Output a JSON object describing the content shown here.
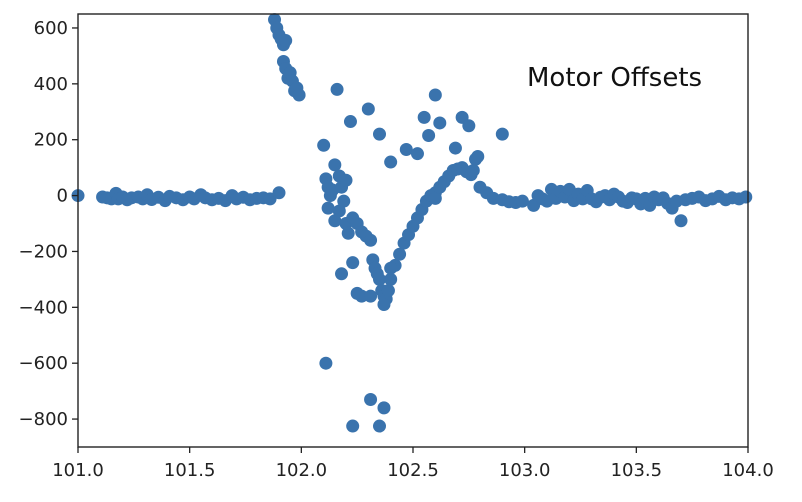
{
  "chart_data": {
    "type": "scatter",
    "title": "",
    "xlabel": "",
    "ylabel": "",
    "xlim": [
      101.0,
      104.0
    ],
    "ylim": [
      -900,
      650
    ],
    "x_ticks": [
      101.0,
      101.5,
      102.0,
      102.5,
      103.0,
      103.5,
      104.0
    ],
    "x_tick_labels": [
      "101.0",
      "101.5",
      "102.0",
      "102.5",
      "103.0",
      "103.5",
      "104.0"
    ],
    "y_ticks": [
      600,
      400,
      200,
      0,
      -200,
      -400,
      -600,
      -800
    ],
    "y_tick_labels": [
      "600",
      "400",
      "200",
      "0",
      "−200",
      "−400",
      "−600",
      "−800"
    ],
    "grid": false,
    "legend": "none",
    "annotation": "Motor Offsets",
    "colors": {
      "marker": "#3a73ad",
      "axis": "#222222",
      "background": "#ffffff"
    },
    "series": [
      {
        "points": [
          [
            101.0,
            0
          ],
          [
            101.11,
            -5
          ],
          [
            101.13,
            -8
          ],
          [
            101.15,
            -12
          ],
          [
            101.17,
            8
          ],
          [
            101.18,
            -12
          ],
          [
            101.2,
            -5
          ],
          [
            101.22,
            -15
          ],
          [
            101.24,
            -8
          ],
          [
            101.27,
            -5
          ],
          [
            101.29,
            -12
          ],
          [
            101.31,
            3
          ],
          [
            101.33,
            -14
          ],
          [
            101.36,
            -6
          ],
          [
            101.39,
            -18
          ],
          [
            101.41,
            -3
          ],
          [
            101.44,
            -8
          ],
          [
            101.47,
            -15
          ],
          [
            101.5,
            -5
          ],
          [
            101.52,
            -12
          ],
          [
            101.55,
            3
          ],
          [
            101.57,
            -8
          ],
          [
            101.6,
            -15
          ],
          [
            101.63,
            -10
          ],
          [
            101.66,
            -18
          ],
          [
            101.69,
            0
          ],
          [
            101.71,
            -12
          ],
          [
            101.74,
            -6
          ],
          [
            101.77,
            -15
          ],
          [
            101.8,
            -10
          ],
          [
            101.83,
            -8
          ],
          [
            101.86,
            -12
          ],
          [
            101.9,
            10
          ],
          [
            101.88,
            630
          ],
          [
            101.89,
            600
          ],
          [
            101.9,
            575
          ],
          [
            101.91,
            560
          ],
          [
            101.92,
            540
          ],
          [
            101.93,
            555
          ],
          [
            101.92,
            480
          ],
          [
            101.93,
            455
          ],
          [
            101.94,
            420
          ],
          [
            101.95,
            440
          ],
          [
            101.96,
            410
          ],
          [
            101.97,
            375
          ],
          [
            101.98,
            385
          ],
          [
            101.99,
            360
          ],
          [
            102.1,
            180
          ],
          [
            102.11,
            60
          ],
          [
            102.12,
            30
          ],
          [
            102.13,
            0
          ],
          [
            102.14,
            20
          ],
          [
            102.15,
            110
          ],
          [
            102.16,
            380
          ],
          [
            102.17,
            70
          ],
          [
            102.18,
            30
          ],
          [
            102.2,
            55
          ],
          [
            102.22,
            265
          ],
          [
            102.3,
            310
          ],
          [
            102.35,
            220
          ],
          [
            102.4,
            120
          ],
          [
            102.47,
            165
          ],
          [
            102.52,
            150
          ],
          [
            102.55,
            280
          ],
          [
            102.57,
            215
          ],
          [
            102.6,
            360
          ],
          [
            102.62,
            260
          ],
          [
            102.12,
            -45
          ],
          [
            102.15,
            -90
          ],
          [
            102.17,
            -55
          ],
          [
            102.19,
            -20
          ],
          [
            102.2,
            -100
          ],
          [
            102.21,
            -135
          ],
          [
            102.23,
            -80
          ],
          [
            102.25,
            -100
          ],
          [
            102.27,
            -130
          ],
          [
            102.29,
            -145
          ],
          [
            102.31,
            -160
          ],
          [
            102.32,
            -230
          ],
          [
            102.33,
            -260
          ],
          [
            102.34,
            -280
          ],
          [
            102.35,
            -300
          ],
          [
            102.36,
            -340
          ],
          [
            102.37,
            -360
          ],
          [
            102.38,
            -370
          ],
          [
            102.39,
            -340
          ],
          [
            102.4,
            -300
          ],
          [
            102.42,
            -250
          ],
          [
            102.44,
            -210
          ],
          [
            102.46,
            -170
          ],
          [
            102.48,
            -140
          ],
          [
            102.5,
            -110
          ],
          [
            102.52,
            -80
          ],
          [
            102.54,
            -50
          ],
          [
            102.56,
            -20
          ],
          [
            102.58,
            0
          ],
          [
            102.6,
            10
          ],
          [
            102.18,
            -280
          ],
          [
            102.23,
            -240
          ],
          [
            102.25,
            -350
          ],
          [
            102.27,
            -360
          ],
          [
            102.31,
            -360
          ],
          [
            102.37,
            -390
          ],
          [
            102.4,
            -260
          ],
          [
            102.11,
            -600
          ],
          [
            102.23,
            -825
          ],
          [
            102.31,
            -730
          ],
          [
            102.35,
            -825
          ],
          [
            102.37,
            -760
          ],
          [
            102.6,
            -10
          ],
          [
            102.62,
            30
          ],
          [
            102.64,
            50
          ],
          [
            102.66,
            70
          ],
          [
            102.68,
            90
          ],
          [
            102.7,
            95
          ],
          [
            102.72,
            100
          ],
          [
            102.74,
            85
          ],
          [
            102.76,
            75
          ],
          [
            102.78,
            130
          ],
          [
            102.79,
            140
          ],
          [
            102.77,
            90
          ],
          [
            102.72,
            280
          ],
          [
            102.75,
            250
          ],
          [
            102.69,
            170
          ],
          [
            102.9,
            220
          ],
          [
            102.8,
            30
          ],
          [
            102.83,
            10
          ],
          [
            102.86,
            -10
          ],
          [
            102.9,
            -15
          ],
          [
            102.93,
            -22
          ],
          [
            102.96,
            -25
          ],
          [
            102.99,
            -20
          ],
          [
            103.04,
            -35
          ],
          [
            103.06,
            0
          ],
          [
            103.08,
            -12
          ],
          [
            103.1,
            -20
          ],
          [
            103.12,
            22
          ],
          [
            103.14,
            -10
          ],
          [
            103.16,
            15
          ],
          [
            103.18,
            -5
          ],
          [
            103.2,
            22
          ],
          [
            103.22,
            -18
          ],
          [
            103.24,
            5
          ],
          [
            103.26,
            -12
          ],
          [
            103.28,
            18
          ],
          [
            103.3,
            -12
          ],
          [
            103.32,
            -22
          ],
          [
            103.34,
            -6
          ],
          [
            103.36,
            0
          ],
          [
            103.38,
            -15
          ],
          [
            103.4,
            5
          ],
          [
            103.42,
            -5
          ],
          [
            103.44,
            -20
          ],
          [
            103.46,
            -25
          ],
          [
            103.48,
            -8
          ],
          [
            103.5,
            -12
          ],
          [
            103.52,
            -30
          ],
          [
            103.54,
            -10
          ],
          [
            103.56,
            -35
          ],
          [
            103.58,
            -5
          ],
          [
            103.6,
            -15
          ],
          [
            103.62,
            -8
          ],
          [
            103.64,
            -28
          ],
          [
            103.66,
            -45
          ],
          [
            103.68,
            -20
          ],
          [
            103.7,
            -90
          ],
          [
            103.72,
            -15
          ],
          [
            103.75,
            -10
          ],
          [
            103.78,
            -5
          ],
          [
            103.81,
            -18
          ],
          [
            103.84,
            -12
          ],
          [
            103.87,
            -3
          ],
          [
            103.9,
            -15
          ],
          [
            103.93,
            -8
          ],
          [
            103.96,
            -12
          ],
          [
            103.99,
            -5
          ]
        ]
      }
    ]
  }
}
